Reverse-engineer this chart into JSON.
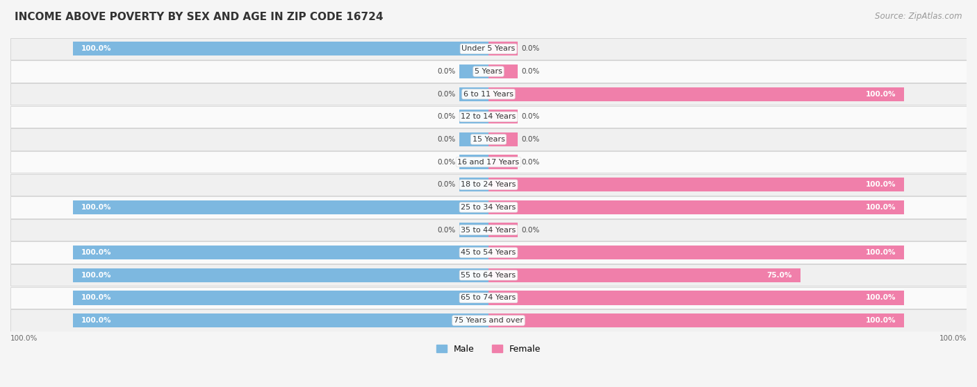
{
  "title": "INCOME ABOVE POVERTY BY SEX AND AGE IN ZIP CODE 16724",
  "source": "Source: ZipAtlas.com",
  "categories": [
    "Under 5 Years",
    "5 Years",
    "6 to 11 Years",
    "12 to 14 Years",
    "15 Years",
    "16 and 17 Years",
    "18 to 24 Years",
    "25 to 34 Years",
    "35 to 44 Years",
    "45 to 54 Years",
    "55 to 64 Years",
    "65 to 74 Years",
    "75 Years and over"
  ],
  "male_values": [
    100.0,
    0.0,
    0.0,
    0.0,
    0.0,
    0.0,
    0.0,
    100.0,
    0.0,
    100.0,
    100.0,
    100.0,
    100.0
  ],
  "female_values": [
    0.0,
    0.0,
    100.0,
    0.0,
    0.0,
    0.0,
    100.0,
    100.0,
    0.0,
    100.0,
    75.0,
    100.0,
    100.0
  ],
  "male_color": "#7db8e0",
  "female_color": "#f07faa",
  "row_color_odd": "#f0f0f0",
  "row_color_even": "#fafafa",
  "background_color": "#f5f5f5",
  "title_fontsize": 11,
  "source_fontsize": 8.5,
  "label_fontsize": 8,
  "value_fontsize": 7.5,
  "legend_fontsize": 9,
  "bar_height": 0.62,
  "stub_size": 7.0,
  "figsize": [
    14.06,
    5.58
  ],
  "dpi": 100
}
